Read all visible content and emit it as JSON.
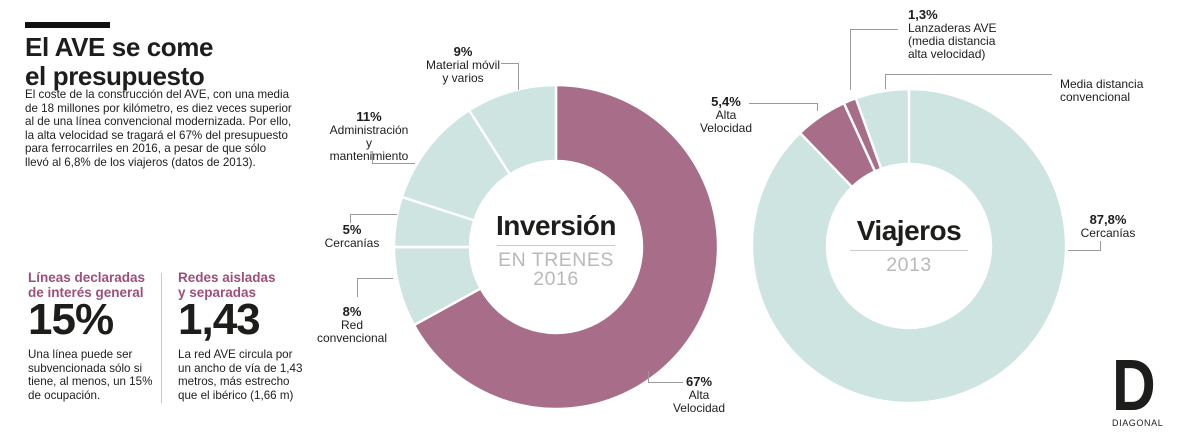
{
  "header": {
    "title": "El AVE se come\nel presupuesto",
    "intro": "El coste de la construcción del AVE, con una media\nde 18 millones por kilómetro, es diez veces superior\nal de una línea convencional modernizada. Por ello,\nla alta velocidad se tragará el 67% del presupuesto\npara ferrocarriles en 2016, a pesar de que sólo\nllevó al 6,8% de los viajeros (datos de 2013)."
  },
  "stats": [
    {
      "heading": "Líneas declaradas\nde interés general",
      "value": "15%",
      "caption": "Una línea puede ser\nsubvencionada sólo si\ntiene, al menos, un 15%\nde ocupación."
    },
    {
      "heading": "Redes aisladas\ny separadas",
      "value": "1,43",
      "caption": "La red AVE circula por\nun ancho de vía de 1,43\nmetros, más estrecho\nque el ibérico (1,66 m)"
    }
  ],
  "colors": {
    "plum": "#a86e89",
    "teal": "#cde4e0",
    "accent_heading": "#9d4f7a",
    "subtitle_gray": "#b9b9b9"
  },
  "chart_data": [
    {
      "type": "donut",
      "title": "Inversión",
      "subtitle": "EN TRENES\n2016",
      "legend_position": "callouts",
      "total": 100,
      "slices": [
        {
          "label": "Alta Velocidad",
          "value": 67,
          "display": "67%",
          "callout": "Alta Velocidad",
          "color": "#a86e89"
        },
        {
          "label": "Red convencional",
          "value": 8,
          "display": "8%",
          "callout": "Red\nconvencional",
          "color": "#cde4e0"
        },
        {
          "label": "Cercanías",
          "value": 5,
          "display": "5%",
          "callout": "Cercanías",
          "color": "#cde4e0"
        },
        {
          "label": "Administración y mantenimiento",
          "value": 11,
          "display": "11%",
          "callout": "Administración y\nmantenimiento",
          "color": "#cde4e0"
        },
        {
          "label": "Material móvil y varios",
          "value": 9,
          "display": "9%",
          "callout": "Material móvil\ny varios",
          "color": "#cde4e0"
        }
      ]
    },
    {
      "type": "donut",
      "title": "Viajeros",
      "subtitle": "2013",
      "legend_position": "callouts",
      "total": 100,
      "slices": [
        {
          "label": "Cercanías",
          "value": 87.8,
          "display": "87,8%",
          "callout": "Cercanías",
          "color": "#cde4e0"
        },
        {
          "label": "Alta Velocidad",
          "value": 5.4,
          "display": "5,4%",
          "callout": "Alta Velocidad",
          "color": "#a86e89"
        },
        {
          "label": "Lanzaderas AVE (media distancia alta velocidad)",
          "value": 1.3,
          "display": "1,3%",
          "callout": "Lanzaderas AVE\n(media distancia\nalta velocidad)",
          "color": "#a86e89"
        },
        {
          "label": "Media distancia convencional",
          "value": 5.5,
          "display": "",
          "callout": "Media distancia\nconvencional",
          "color": "#cde4e0"
        }
      ]
    }
  ],
  "logo": {
    "letter": "D",
    "name": "DIAGONAL"
  }
}
